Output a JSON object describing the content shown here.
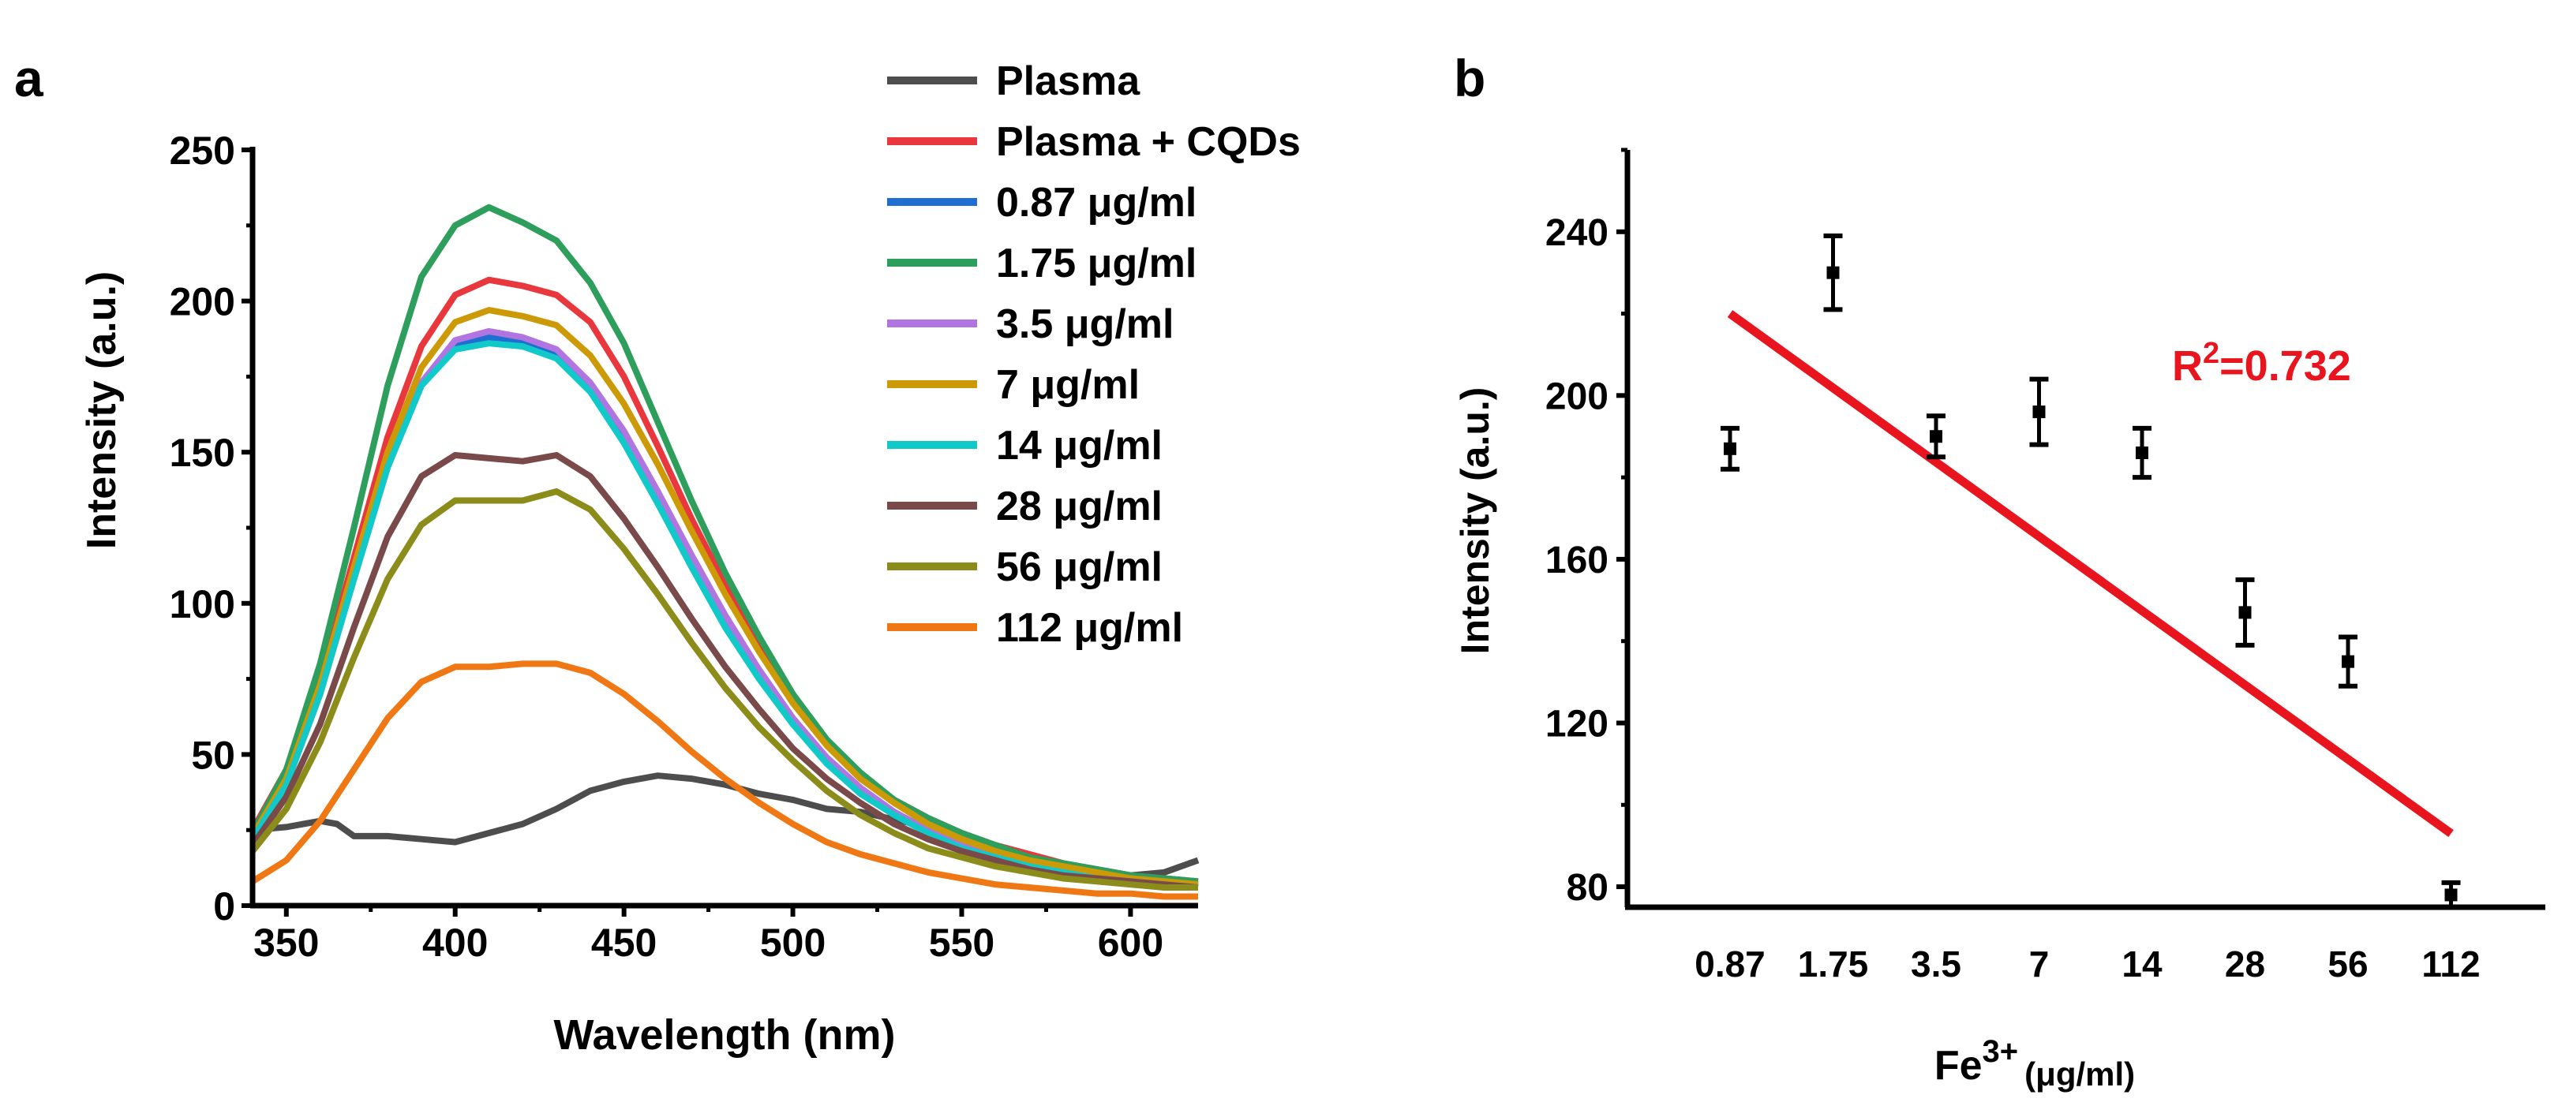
{
  "chart_data": [
    {
      "panel_label": "a",
      "type": "line",
      "title": "",
      "xlabel": "Wavelength (nm)",
      "ylabel": "Intensity (a.u.)",
      "xlim": [
        340,
        620
      ],
      "ylim": [
        0,
        250
      ],
      "xticks": [
        350,
        400,
        450,
        500,
        550,
        600
      ],
      "yticks": [
        0,
        50,
        100,
        150,
        200,
        250
      ],
      "legend_position": "top-right, outside plot",
      "series": [
        {
          "name": "Plasma",
          "color": "#4d4d4d",
          "x": [
            340,
            350,
            360,
            365,
            370,
            380,
            390,
            400,
            410,
            420,
            430,
            440,
            450,
            460,
            470,
            480,
            490,
            500,
            510,
            520,
            540,
            560,
            580,
            600,
            610,
            620
          ],
          "y": [
            25,
            26,
            28,
            27,
            23,
            23,
            22,
            21,
            24,
            27,
            32,
            38,
            41,
            43,
            42,
            40,
            37,
            35,
            32,
            31,
            26,
            20,
            14,
            10,
            11,
            15
          ]
        },
        {
          "name": "Plasma + CQDs",
          "color": "#e8383d",
          "x": [
            340,
            350,
            360,
            370,
            380,
            390,
            400,
            410,
            420,
            430,
            440,
            450,
            460,
            470,
            480,
            490,
            500,
            510,
            520,
            530,
            540,
            550,
            560,
            570,
            580,
            590,
            600,
            610,
            620
          ],
          "y": [
            25,
            45,
            75,
            115,
            155,
            185,
            202,
            207,
            205,
            202,
            193,
            175,
            152,
            128,
            106,
            86,
            68,
            54,
            43,
            35,
            29,
            24,
            20,
            17,
            14,
            12,
            10,
            9,
            8
          ]
        },
        {
          "name": "0.87 μg/ml",
          "color": "#1f6fd1",
          "x": [
            340,
            350,
            360,
            370,
            380,
            390,
            400,
            410,
            420,
            430,
            440,
            450,
            460,
            470,
            480,
            490,
            500,
            510,
            520,
            530,
            540,
            550,
            560,
            570,
            580,
            590,
            600,
            610,
            620
          ],
          "y": [
            22,
            40,
            70,
            108,
            145,
            172,
            185,
            188,
            186,
            183,
            172,
            156,
            136,
            115,
            95,
            78,
            62,
            49,
            39,
            31,
            25,
            21,
            17,
            14,
            12,
            10,
            9,
            8,
            7
          ]
        },
        {
          "name": "1.75 μg/ml",
          "color": "#2e9e5c",
          "x": [
            340,
            350,
            360,
            370,
            380,
            390,
            400,
            410,
            420,
            430,
            440,
            450,
            460,
            470,
            480,
            490,
            500,
            510,
            520,
            530,
            540,
            550,
            560,
            570,
            580,
            590,
            600,
            610,
            620
          ],
          "y": [
            24,
            45,
            80,
            125,
            172,
            208,
            225,
            231,
            226,
            220,
            206,
            186,
            160,
            134,
            110,
            89,
            70,
            55,
            44,
            35,
            29,
            24,
            20,
            16,
            14,
            12,
            10,
            9,
            8
          ]
        },
        {
          "name": "3.5 μg/ml",
          "color": "#b075e0",
          "x": [
            340,
            350,
            360,
            370,
            380,
            390,
            400,
            410,
            420,
            430,
            440,
            450,
            460,
            470,
            480,
            490,
            500,
            510,
            520,
            530,
            540,
            550,
            560,
            570,
            580,
            590,
            600,
            610,
            620
          ],
          "y": [
            22,
            40,
            70,
            108,
            145,
            173,
            187,
            190,
            188,
            184,
            173,
            157,
            137,
            116,
            96,
            78,
            62,
            49,
            39,
            31,
            25,
            20,
            17,
            14,
            12,
            10,
            9,
            8,
            7
          ]
        },
        {
          "name": "7 μg/ml",
          "color": "#cc9a06",
          "x": [
            340,
            350,
            360,
            370,
            380,
            390,
            400,
            410,
            420,
            430,
            440,
            450,
            460,
            470,
            480,
            490,
            500,
            510,
            520,
            530,
            540,
            550,
            560,
            570,
            580,
            590,
            600,
            610,
            620
          ],
          "y": [
            23,
            42,
            73,
            112,
            150,
            178,
            193,
            197,
            195,
            192,
            182,
            166,
            146,
            124,
            103,
            84,
            67,
            53,
            42,
            34,
            27,
            22,
            18,
            15,
            13,
            11,
            9,
            8,
            7
          ]
        },
        {
          "name": "14 μg/ml",
          "color": "#12c9c9",
          "x": [
            340,
            350,
            360,
            370,
            380,
            390,
            400,
            410,
            420,
            430,
            440,
            450,
            460,
            470,
            480,
            490,
            500,
            510,
            520,
            530,
            540,
            550,
            560,
            570,
            580,
            590,
            600,
            610,
            620
          ],
          "y": [
            22,
            40,
            70,
            108,
            145,
            172,
            184,
            186,
            185,
            181,
            170,
            153,
            133,
            112,
            92,
            75,
            60,
            47,
            37,
            30,
            24,
            19,
            16,
            13,
            11,
            9,
            8,
            7,
            6
          ]
        },
        {
          "name": "28 μg/ml",
          "color": "#7a4a4a",
          "x": [
            340,
            350,
            360,
            370,
            380,
            390,
            400,
            410,
            420,
            430,
            440,
            450,
            460,
            470,
            480,
            490,
            500,
            510,
            520,
            530,
            540,
            550,
            560,
            570,
            580,
            590,
            600,
            610,
            620
          ],
          "y": [
            20,
            36,
            60,
            92,
            122,
            142,
            149,
            148,
            147,
            149,
            142,
            128,
            112,
            95,
            79,
            65,
            52,
            42,
            34,
            27,
            22,
            18,
            15,
            12,
            10,
            9,
            8,
            7,
            6
          ]
        },
        {
          "name": "56 μg/ml",
          "color": "#8c8c1a",
          "x": [
            340,
            350,
            360,
            370,
            380,
            390,
            400,
            410,
            420,
            430,
            440,
            450,
            460,
            470,
            480,
            490,
            500,
            510,
            520,
            530,
            540,
            550,
            560,
            570,
            580,
            590,
            600,
            610,
            620
          ],
          "y": [
            18,
            32,
            54,
            82,
            108,
            126,
            134,
            134,
            134,
            137,
            131,
            118,
            103,
            87,
            72,
            59,
            48,
            38,
            30,
            24,
            19,
            16,
            13,
            11,
            9,
            8,
            7,
            6,
            6
          ]
        },
        {
          "name": "112 μg/ml",
          "color": "#f07814",
          "x": [
            340,
            350,
            360,
            370,
            380,
            390,
            400,
            410,
            420,
            430,
            440,
            450,
            460,
            470,
            480,
            490,
            500,
            510,
            520,
            530,
            540,
            550,
            560,
            570,
            580,
            590,
            600,
            610,
            620
          ],
          "y": [
            8,
            15,
            28,
            45,
            62,
            74,
            79,
            79,
            80,
            80,
            77,
            70,
            61,
            51,
            42,
            34,
            27,
            21,
            17,
            14,
            11,
            9,
            7,
            6,
            5,
            4,
            4,
            3,
            3
          ]
        }
      ]
    },
    {
      "panel_label": "b",
      "type": "scatter",
      "title": "",
      "xlabel": "Fe",
      "xlabel_sup": "3+",
      "xlabel_unit": "(μg/ml)",
      "ylabel": "Intensity (a.u.)",
      "ylim": [
        75,
        260
      ],
      "yticks": [
        80,
        120,
        160,
        200,
        240
      ],
      "categories": [
        "0.87",
        "1.75",
        "3.5",
        "7",
        "14",
        "28",
        "56",
        "112"
      ],
      "values": [
        187,
        230,
        190,
        196,
        186,
        147,
        135,
        78
      ],
      "errors": [
        5,
        9,
        5,
        8,
        6,
        8,
        6,
        3
      ],
      "point_color": "#000000",
      "fit": {
        "color": "#e8141e",
        "start": [
          0,
          220
        ],
        "end": [
          7,
          93
        ],
        "label": "R",
        "label_sup": "2",
        "label_value": "=0.732"
      }
    }
  ]
}
